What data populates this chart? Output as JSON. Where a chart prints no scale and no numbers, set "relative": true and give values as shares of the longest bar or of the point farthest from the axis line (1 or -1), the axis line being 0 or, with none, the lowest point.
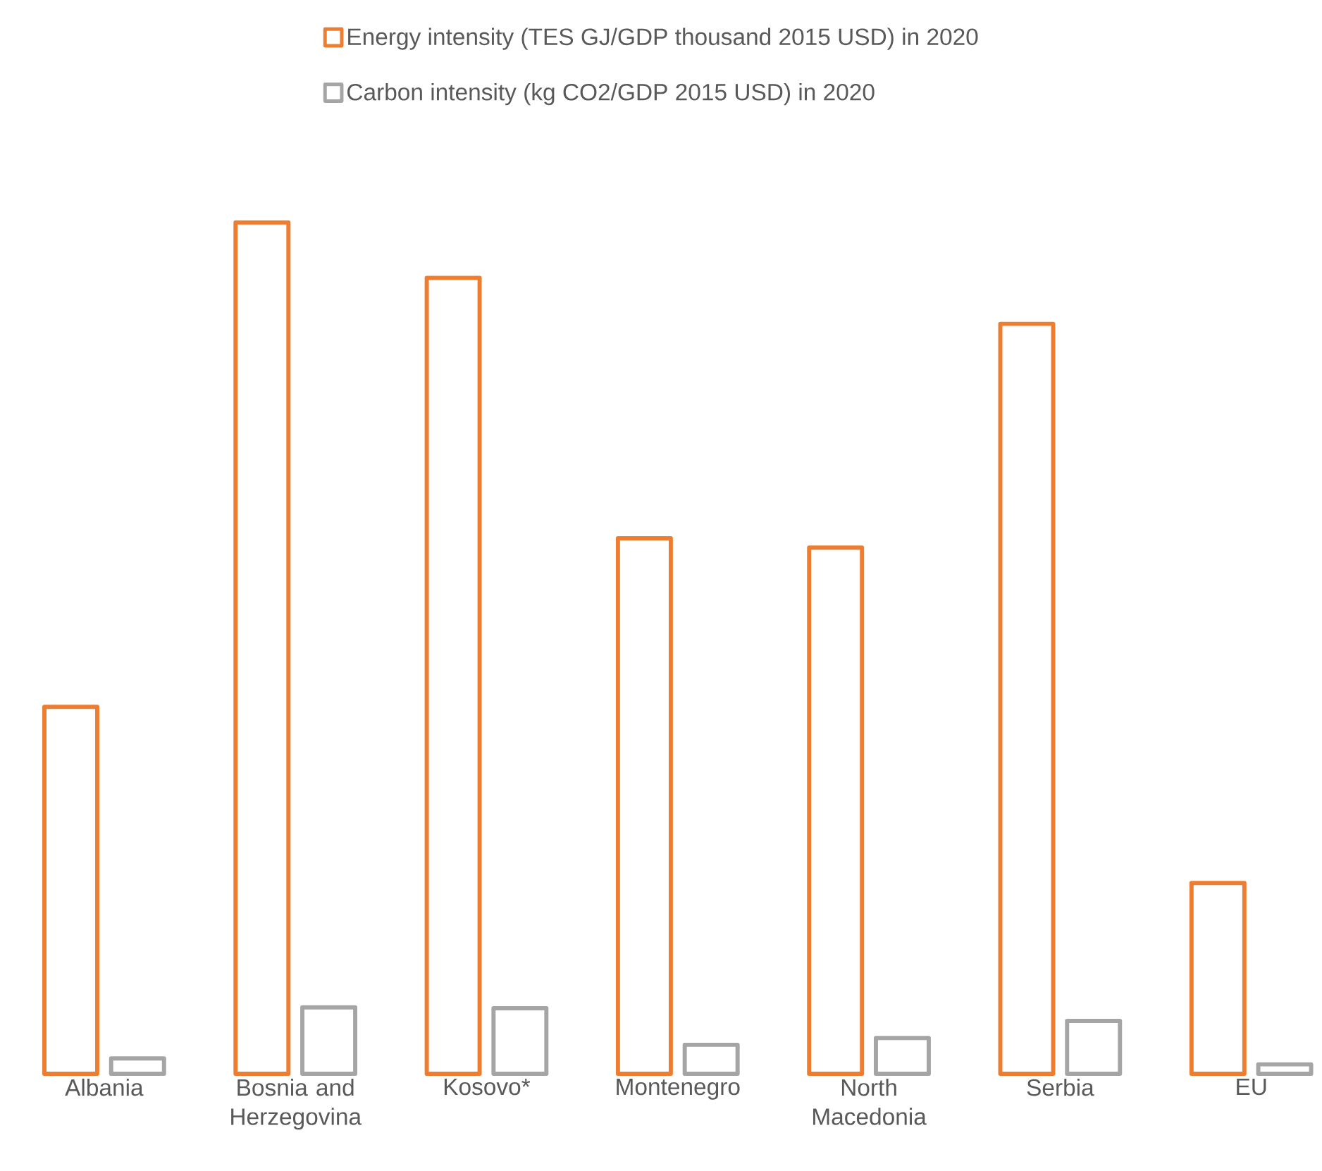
{
  "chart_data": {
    "type": "bar",
    "relative": true,
    "legend": "top",
    "categories": [
      "Albania",
      "Bosnia and Herzegovina",
      "Kosovo*",
      "Montenegro",
      "North Macedonia",
      "Serbia",
      "EU"
    ],
    "series": [
      {
        "name": "Energy intensity (TES GJ/GDP thousand 2015 USD) in 2020",
        "color": "#ed7d31",
        "values": [
          0.431,
          1,
          0.935,
          0.629,
          0.618,
          0.881,
          0.224
        ]
      },
      {
        "name": "Carbon intensity (kg CO2/GDP 2015 USD) in 2020",
        "color": "#a5a5a5",
        "values": [
          0.018,
          0.078,
          0.077,
          0.034,
          0.042,
          0.062,
          0.011
        ]
      }
    ]
  }
}
